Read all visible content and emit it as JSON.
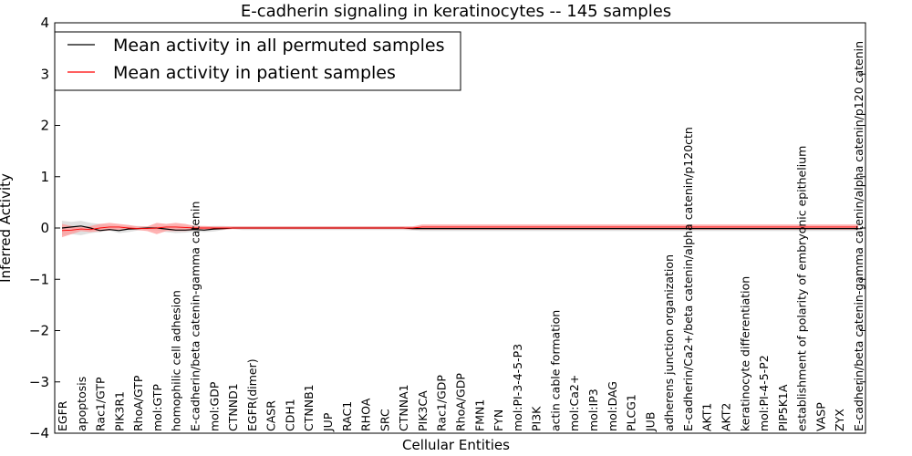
{
  "chart_data": {
    "type": "line",
    "title": "E-cadherin signaling in keratinocytes -- 145 samples",
    "xlabel": "Cellular Entities",
    "ylabel": "Inferred Activity",
    "ylim": [
      -4,
      4
    ],
    "yticks": [
      -4,
      -3,
      -2,
      -1,
      0,
      1,
      2,
      3,
      4
    ],
    "grid": false,
    "legend_position": "top-left",
    "categories": [
      "EGFR",
      "apoptosis",
      "Rac1/GTP",
      "PIK3R1",
      "RhoA/GTP",
      "mol:GTP",
      "homophilic cell adhesion",
      "E-cadherin/beta catenin-gamma catenin",
      "mol:GDP",
      "CTNND1",
      "EGFR(dimer)",
      "CASR",
      "CDH1",
      "CTNNB1",
      "JUP",
      "RAC1",
      "RHOA",
      "SRC",
      "CTNNA1",
      "PIK3CA",
      "Rac1/GDP",
      "RhoA/GDP",
      "FMN1",
      "FYN",
      "mol:PI-3-4-5-P3",
      "PI3K",
      "actin cable formation",
      "mol:Ca2+",
      "mol:IP3",
      "mol:DAG",
      "PLCG1",
      "JUB",
      "adherens junction organization",
      "E-cadherin/Ca2+/beta catenin/alpha catenin/p120ctn",
      "AKT1",
      "AKT2",
      "keratinocyte differentiation",
      "mol:PI-4-5-P2",
      "PIP5K1A",
      "establishment of polarity of embryonic epithelium",
      "VASP",
      "ZYX",
      "E-cadherin/beta catenin-gamma catenin/alpha catenin/p120 catenin"
    ],
    "series": [
      {
        "name": "Mean activity in all permuted samples",
        "color": "#000000",
        "values": [
          0.0,
          0.02,
          0.04,
          0.0,
          -0.05,
          -0.03,
          -0.05,
          -0.02,
          -0.01,
          0.0,
          0.0,
          -0.02,
          -0.04,
          -0.04,
          -0.03,
          -0.04,
          -0.02,
          -0.01,
          0.0,
          0.0,
          0.0,
          0.0,
          0.0,
          0.0,
          0.0,
          0.0,
          0.0,
          0.0,
          0.0,
          0.0,
          0.0,
          0.0,
          0.0,
          0.0,
          0.0,
          0.0,
          0.0,
          -0.01,
          -0.01,
          -0.01,
          -0.01,
          -0.01,
          -0.01,
          -0.01,
          -0.01,
          -0.01,
          -0.01,
          -0.01,
          -0.01,
          -0.01,
          -0.01,
          -0.01,
          -0.01,
          -0.01,
          -0.01,
          -0.01,
          -0.01,
          -0.01,
          -0.01,
          -0.01,
          -0.01,
          -0.01,
          -0.01,
          -0.01,
          -0.01,
          -0.01,
          -0.01,
          -0.01,
          -0.01,
          -0.01,
          -0.01,
          -0.01,
          -0.01,
          -0.01,
          -0.01,
          -0.01,
          -0.01,
          -0.01,
          -0.01,
          -0.01,
          -0.01,
          -0.01,
          -0.01,
          -0.01,
          -0.01
        ],
        "band_low": [
          -0.14,
          -0.12,
          -0.14,
          -0.1,
          -0.08,
          -0.05,
          -0.1,
          -0.08,
          -0.05,
          -0.04,
          -0.05,
          -0.08,
          -0.1,
          -0.09,
          -0.07,
          -0.08,
          -0.07,
          -0.04,
          -0.02,
          -0.04,
          -0.04,
          -0.04,
          -0.04,
          -0.04,
          -0.04,
          -0.04,
          -0.04,
          -0.04,
          -0.04,
          -0.04,
          -0.04,
          -0.04,
          -0.04,
          -0.04,
          -0.04,
          -0.04,
          -0.04,
          -0.05,
          -0.06,
          -0.06,
          -0.06,
          -0.06,
          -0.06,
          -0.06,
          -0.06,
          -0.06,
          -0.06,
          -0.06,
          -0.06,
          -0.06,
          -0.06,
          -0.06,
          -0.06,
          -0.06,
          -0.06,
          -0.06,
          -0.06,
          -0.06,
          -0.06,
          -0.06,
          -0.06,
          -0.06,
          -0.06,
          -0.06,
          -0.06,
          -0.06,
          -0.06,
          -0.06,
          -0.06,
          -0.06,
          -0.06,
          -0.06,
          -0.06,
          -0.06,
          -0.06,
          -0.06,
          -0.06,
          -0.06,
          -0.06,
          -0.06,
          -0.06,
          -0.06,
          -0.06,
          -0.06,
          -0.06
        ],
        "band_high": [
          0.14,
          0.12,
          0.14,
          0.1,
          0.08,
          0.05,
          0.04,
          0.04,
          0.04,
          0.03,
          0.03,
          0.04,
          0.04,
          0.04,
          0.05,
          0.03,
          0.04,
          0.04,
          0.03,
          0.03,
          0.03,
          0.03,
          0.03,
          0.03,
          0.03,
          0.03,
          0.03,
          0.03,
          0.03,
          0.03,
          0.03,
          0.03,
          0.03,
          0.03,
          0.03,
          0.03,
          0.03,
          0.03,
          0.03,
          0.03,
          0.03,
          0.03,
          0.03,
          0.03,
          0.03,
          0.03,
          0.03,
          0.03,
          0.03,
          0.03,
          0.03,
          0.03,
          0.03,
          0.03,
          0.03,
          0.03,
          0.03,
          0.03,
          0.03,
          0.03,
          0.03,
          0.03,
          0.03,
          0.03,
          0.03,
          0.03,
          0.03,
          0.03,
          0.03,
          0.03,
          0.03,
          0.03,
          0.03,
          0.03,
          0.03,
          0.03,
          0.03,
          0.03,
          0.03,
          0.03,
          0.03,
          0.03,
          0.03,
          0.03,
          0.03
        ],
        "band_color": "#d3d3d3"
      },
      {
        "name": "Mean activity in patient samples",
        "color": "#ff0000",
        "values": [
          -0.05,
          -0.04,
          -0.02,
          -0.03,
          0.0,
          0.02,
          0.02,
          0.0,
          -0.01,
          -0.01,
          0.0,
          0.02,
          0.02,
          0.01,
          0.0,
          0.0,
          0.0,
          0.0,
          0.0,
          0.0,
          0.0,
          0.0,
          0.0,
          0.0,
          0.0,
          0.0,
          0.0,
          0.0,
          0.0,
          0.0,
          0.0,
          0.0,
          0.0,
          0.0,
          0.0,
          0.0,
          0.0,
          0.0,
          0.02,
          0.02,
          0.02,
          0.02,
          0.02,
          0.02,
          0.02,
          0.02,
          0.02,
          0.02,
          0.02,
          0.02,
          0.02,
          0.02,
          0.02,
          0.02,
          0.02,
          0.02,
          0.02,
          0.02,
          0.02,
          0.02,
          0.02,
          0.02,
          0.02,
          0.02,
          0.02,
          0.02,
          0.02,
          0.02,
          0.02,
          0.02,
          0.02,
          0.02,
          0.02,
          0.02,
          0.02,
          0.02,
          0.02,
          0.02,
          0.02,
          0.02,
          0.02,
          0.02,
          0.02,
          0.02,
          0.02
        ],
        "band_low": [
          -0.18,
          -0.12,
          -0.06,
          -0.08,
          -0.06,
          -0.05,
          -0.03,
          -0.03,
          -0.04,
          -0.06,
          -0.12,
          -0.06,
          -0.06,
          -0.06,
          -0.04,
          -0.03,
          -0.03,
          -0.03,
          -0.02,
          -0.02,
          -0.02,
          -0.02,
          -0.02,
          -0.02,
          -0.02,
          -0.02,
          -0.02,
          -0.02,
          -0.02,
          -0.02,
          -0.02,
          -0.02,
          -0.02,
          -0.02,
          -0.02,
          -0.02,
          -0.02,
          -0.03,
          -0.03,
          -0.03,
          -0.03,
          -0.03,
          -0.03,
          -0.03,
          -0.03,
          -0.03,
          -0.03,
          -0.03,
          -0.03,
          -0.03,
          -0.03,
          -0.03,
          -0.03,
          -0.03,
          -0.03,
          -0.03,
          -0.03,
          -0.03,
          -0.03,
          -0.03,
          -0.03,
          -0.03,
          -0.03,
          -0.03,
          -0.03,
          -0.03,
          -0.03,
          -0.03,
          -0.03,
          -0.03,
          -0.03,
          -0.03,
          -0.03,
          -0.03,
          -0.03,
          -0.03,
          -0.03,
          -0.03,
          -0.03,
          -0.03,
          -0.03,
          -0.03,
          -0.03,
          -0.03,
          -0.03
        ],
        "band_high": [
          0.08,
          0.04,
          0.02,
          0.04,
          0.08,
          0.1,
          0.08,
          0.06,
          0.03,
          0.03,
          0.1,
          0.08,
          0.1,
          0.08,
          0.04,
          0.04,
          0.03,
          0.03,
          0.03,
          0.03,
          0.03,
          0.03,
          0.03,
          0.03,
          0.03,
          0.03,
          0.03,
          0.03,
          0.03,
          0.03,
          0.03,
          0.03,
          0.03,
          0.03,
          0.03,
          0.03,
          0.03,
          0.03,
          0.07,
          0.07,
          0.07,
          0.07,
          0.07,
          0.07,
          0.07,
          0.07,
          0.07,
          0.07,
          0.07,
          0.07,
          0.07,
          0.07,
          0.07,
          0.07,
          0.07,
          0.07,
          0.07,
          0.07,
          0.07,
          0.07,
          0.07,
          0.07,
          0.07,
          0.07,
          0.07,
          0.07,
          0.07,
          0.07,
          0.07,
          0.07,
          0.07,
          0.07,
          0.07,
          0.07,
          0.07,
          0.07,
          0.07,
          0.07,
          0.07,
          0.07,
          0.07,
          0.07,
          0.07,
          0.07,
          0.07
        ],
        "band_color": "#ff9999"
      }
    ],
    "x": [
      0,
      1,
      2,
      3,
      4,
      5,
      6,
      7,
      8,
      9,
      10,
      11,
      12,
      13,
      14,
      15,
      16,
      17,
      18,
      19,
      20,
      21,
      22,
      23,
      24,
      25,
      26,
      27,
      28,
      29,
      30,
      31,
      32,
      33,
      34,
      35,
      36,
      37,
      38,
      39,
      40,
      41,
      42,
      43,
      44,
      45,
      46,
      47,
      48,
      49,
      50,
      51,
      52,
      53,
      54,
      55,
      56,
      57,
      58,
      59,
      60,
      61,
      62,
      63,
      64,
      65,
      66,
      67,
      68,
      69,
      70,
      71,
      72,
      73,
      74,
      75,
      76,
      77,
      78,
      79,
      80,
      81,
      82,
      83,
      84
    ],
    "label_x_indices": [
      0,
      2,
      4,
      6,
      8,
      10,
      12,
      14,
      16,
      18,
      20,
      22,
      24,
      26,
      28,
      30,
      32,
      34,
      36,
      38,
      40,
      42,
      44,
      46,
      48,
      50,
      52,
      54,
      56,
      58,
      60,
      62,
      64,
      66,
      68,
      70,
      72,
      74,
      76,
      78,
      80,
      82,
      84
    ],
    "xlim": [
      0,
      84
    ]
  }
}
